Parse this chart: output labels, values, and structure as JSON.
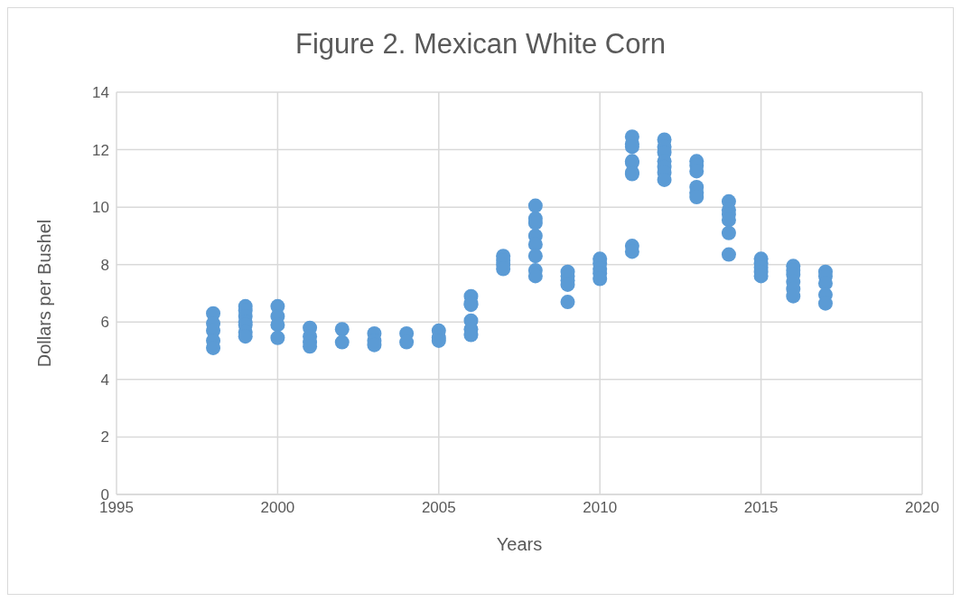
{
  "chart_data": {
    "type": "scatter",
    "title": "Figure 2. Mexican White Corn",
    "xlabel": "Years",
    "ylabel": "Dollars per Bushel",
    "x": [
      1998,
      1998,
      1998,
      1998,
      1998,
      1999,
      1999,
      1999,
      1999,
      1999,
      1999,
      1999,
      2000,
      2000,
      2000,
      2000,
      2001,
      2001,
      2001,
      2001,
      2002,
      2002,
      2003,
      2003,
      2003,
      2004,
      2004,
      2005,
      2005,
      2005,
      2006,
      2006,
      2006,
      2006,
      2006,
      2006,
      2007,
      2007,
      2007,
      2007,
      2008,
      2008,
      2008,
      2008,
      2008,
      2008,
      2008,
      2008,
      2009,
      2009,
      2009,
      2009,
      2009,
      2010,
      2010,
      2010,
      2010,
      2010,
      2011,
      2011,
      2011,
      2011,
      2011,
      2011,
      2011,
      2011,
      2011,
      2012,
      2012,
      2012,
      2012,
      2012,
      2012,
      2012,
      2013,
      2013,
      2013,
      2013,
      2013,
      2013,
      2014,
      2014,
      2014,
      2014,
      2014,
      2014,
      2015,
      2015,
      2015,
      2015,
      2015,
      2016,
      2016,
      2016,
      2016,
      2016,
      2016,
      2017,
      2017,
      2017,
      2017,
      2017
    ],
    "series": [
      {
        "color": "#5b9bd5",
        "values": [
          6.3,
          5.95,
          5.7,
          5.35,
          5.1,
          6.55,
          6.4,
          6.2,
          6.0,
          5.9,
          5.65,
          5.5,
          6.55,
          6.2,
          5.9,
          5.45,
          5.8,
          5.5,
          5.3,
          5.15,
          5.75,
          5.3,
          5.6,
          5.35,
          5.2,
          5.6,
          5.3,
          5.7,
          5.45,
          5.35,
          6.9,
          6.65,
          6.6,
          6.05,
          5.75,
          5.55,
          8.3,
          8.15,
          8.0,
          7.85,
          10.05,
          9.6,
          9.45,
          9.0,
          8.7,
          8.3,
          7.8,
          7.6,
          7.75,
          7.6,
          7.45,
          7.3,
          6.7,
          8.2,
          8.05,
          7.85,
          7.7,
          7.5,
          12.45,
          12.2,
          12.1,
          11.6,
          11.55,
          11.2,
          11.15,
          8.65,
          8.45,
          12.35,
          12.1,
          11.9,
          11.6,
          11.4,
          11.2,
          10.95,
          11.6,
          11.45,
          11.25,
          10.7,
          10.5,
          10.35,
          10.2,
          9.9,
          9.75,
          9.55,
          9.1,
          8.35,
          8.2,
          8.05,
          7.9,
          7.75,
          7.6,
          7.95,
          7.8,
          7.65,
          7.4,
          7.15,
          6.9,
          7.75,
          7.6,
          7.35,
          6.95,
          6.65
        ]
      }
    ],
    "xlim": [
      1995,
      2020
    ],
    "xticks": [
      1995,
      2000,
      2005,
      2010,
      2015,
      2020
    ],
    "ylim": [
      0,
      14
    ],
    "yticks": [
      0,
      2,
      4,
      6,
      8,
      10,
      12,
      14
    ],
    "grid": true,
    "marker": "circle",
    "legend": false
  }
}
